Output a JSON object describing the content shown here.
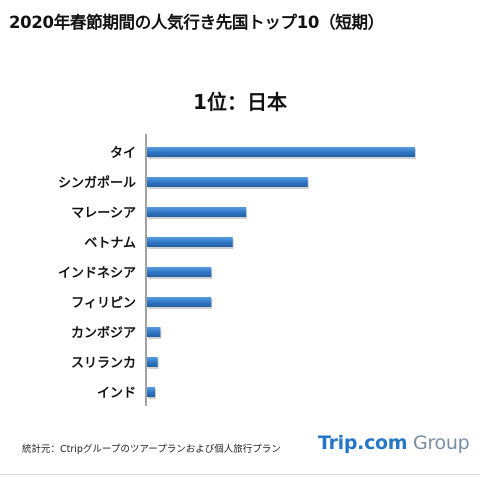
{
  "title": "2020年春節期間の人気行き先国トップ10（短期）",
  "subtitle": "1位：日本",
  "chart_data": {
    "type": "bar",
    "orientation": "horizontal",
    "categories": [
      "タイ",
      "シンガポール",
      "マレーシア",
      "ベトナム",
      "インドネシア",
      "フィリピン",
      "カンボジア",
      "スリランカ",
      "インド"
    ],
    "values": [
      100,
      60,
      37,
      32,
      24,
      24,
      5,
      4,
      3
    ],
    "xlim": [
      0,
      100
    ],
    "grid": false,
    "bar_color": "#2f75c4"
  },
  "footer": {
    "source": "統計元：Ctripグループのツアープランおよび個人旅行プラン",
    "logo_primary": "Trip.com",
    "logo_secondary": " Group"
  }
}
